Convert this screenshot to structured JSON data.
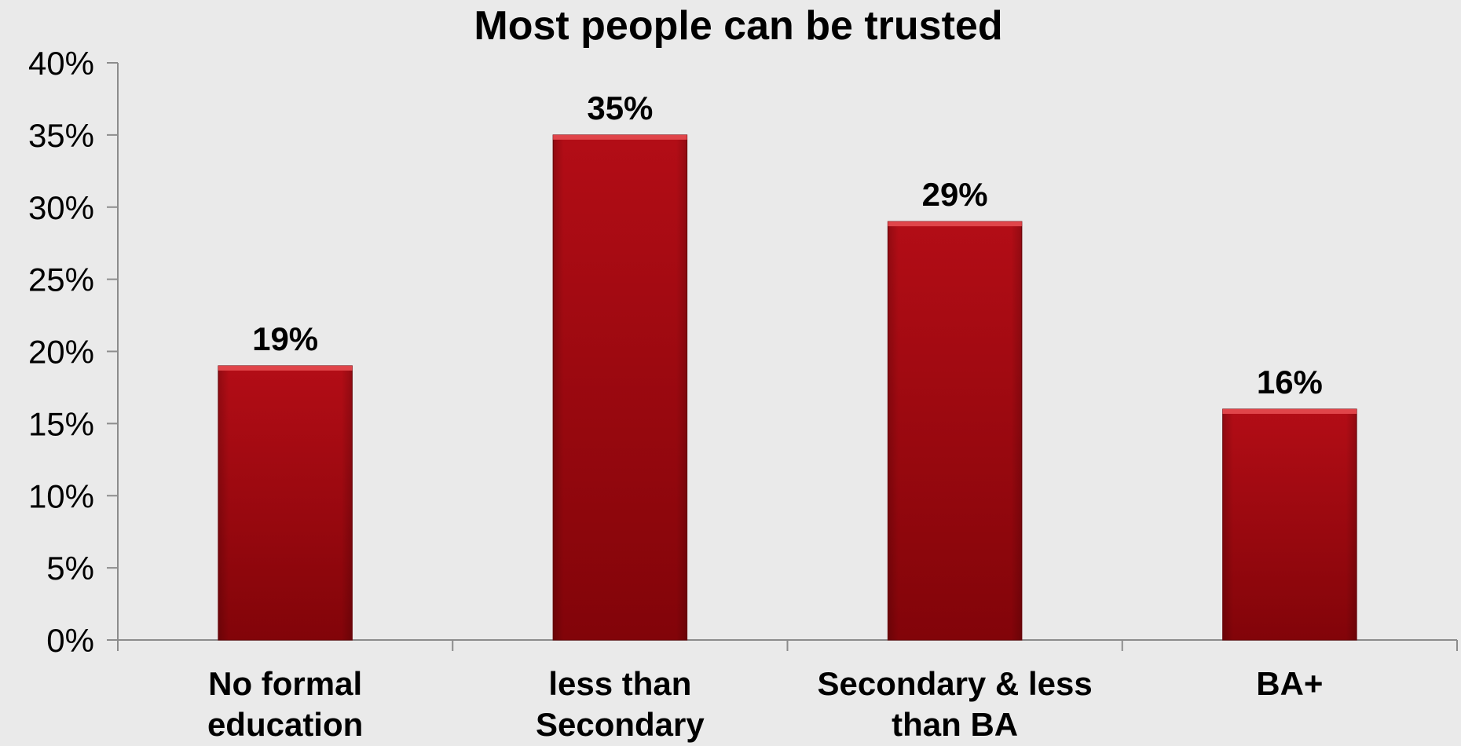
{
  "chart_data": {
    "type": "bar",
    "title": "Most people can be trusted",
    "xlabel": "",
    "ylabel": "",
    "categories": [
      [
        "No formal",
        "education"
      ],
      [
        "less than",
        "Secondary"
      ],
      [
        "Secondary & less",
        "than BA"
      ],
      [
        "BA+"
      ]
    ],
    "values": [
      19,
      35,
      29,
      16
    ],
    "value_labels": [
      "19%",
      "35%",
      "29%",
      "16%"
    ],
    "ylim": [
      0,
      40
    ],
    "yticks": [
      0,
      5,
      10,
      15,
      20,
      25,
      30,
      35,
      40
    ],
    "ytick_labels": [
      "0%",
      "5%",
      "10%",
      "15%",
      "20%",
      "25%",
      "30%",
      "35%",
      "40%"
    ],
    "grid": false,
    "legend": "none",
    "colors": {
      "bar_top": "#b30d16",
      "bar_bottom": "#820409",
      "bar_highlight": "#e0454a",
      "axis": "#8c8c8c",
      "background": "#eaeaea"
    }
  }
}
